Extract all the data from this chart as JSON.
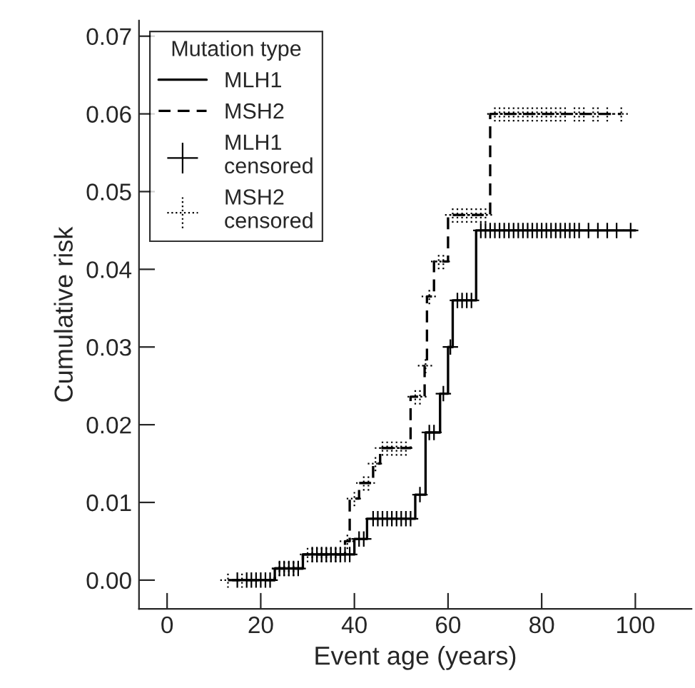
{
  "chart_data": {
    "type": "step",
    "xlabel": "Event age (years)",
    "ylabel": "Cumulative risk",
    "legend_title": "Mutation type",
    "xlim": [
      -6,
      112
    ],
    "xticks": [
      0,
      20,
      40,
      60,
      80,
      100
    ],
    "ylim": [
      -0.0037,
      0.072
    ],
    "yticks": [
      {
        "value": 0,
        "label": "0.00"
      },
      0.01,
      0.02,
      0.03,
      0.04,
      0.05,
      0.06,
      0.07
    ],
    "grid": false,
    "legend": "top left",
    "series": [
      {
        "name": "MLH1",
        "color": "#000000",
        "line_style": "solid",
        "x": [
          14,
          23,
          29,
          40,
          42.7,
          53,
          55.2,
          58.3,
          60,
          61,
          66,
          100
        ],
        "values": [
          0,
          0.0015,
          0.0033,
          0.0053,
          0.0079,
          0.011,
          0.019,
          0.024,
          0.03,
          0.036,
          0.045,
          0.045
        ]
      },
      {
        "name": "MSH2",
        "color": "#000000",
        "line_style": "dashed",
        "x": [
          13,
          23,
          29,
          38,
          39,
          41,
          44,
          45.5,
          52,
          55,
          55.5,
          57,
          60,
          69,
          97
        ],
        "values": [
          0,
          0.0015,
          0.0033,
          0.005,
          0.0105,
          0.0125,
          0.015,
          0.017,
          0.0236,
          0.0276,
          0.0365,
          0.041,
          0.047,
          0.06,
          0.06
        ]
      },
      {
        "name": "MLH1\ncensored",
        "type": "scatter",
        "color": "#000000",
        "line_style": "solid",
        "marker": "cross",
        "x": [
          15,
          17,
          18,
          19,
          20,
          21,
          22,
          24,
          25,
          26,
          27,
          28,
          31,
          32,
          33,
          34,
          35,
          36,
          37,
          38,
          39,
          41,
          42,
          44,
          45,
          46,
          47,
          48,
          49,
          50,
          51,
          52,
          54,
          56,
          57,
          59,
          60.5,
          62,
          63,
          64,
          65,
          67,
          68,
          69,
          70,
          71,
          72,
          73,
          74,
          75,
          76,
          77,
          78,
          79,
          80,
          81,
          82,
          83,
          84,
          85,
          86,
          87,
          88,
          90,
          92,
          94,
          96,
          99
        ],
        "values": [
          0,
          0,
          0,
          0,
          0,
          0,
          0,
          0.0015,
          0.0015,
          0.0015,
          0.0015,
          0.0015,
          0.0033,
          0.0033,
          0.0033,
          0.0033,
          0.0033,
          0.0033,
          0.0033,
          0.0033,
          0.0033,
          0.0053,
          0.0053,
          0.0079,
          0.0079,
          0.0079,
          0.0079,
          0.0079,
          0.0079,
          0.0079,
          0.0079,
          0.0079,
          0.011,
          0.019,
          0.019,
          0.024,
          0.03,
          0.036,
          0.036,
          0.036,
          0.036,
          0.045,
          0.045,
          0.045,
          0.045,
          0.045,
          0.045,
          0.045,
          0.045,
          0.045,
          0.045,
          0.045,
          0.045,
          0.045,
          0.045,
          0.045,
          0.045,
          0.045,
          0.045,
          0.045,
          0.045,
          0.045,
          0.045,
          0.045,
          0.045,
          0.045,
          0.045,
          0.045
        ]
      },
      {
        "name": "MSH2\ncensored",
        "type": "scatter",
        "color": "#000000",
        "line_style": "dotted",
        "marker": "cross",
        "x": [
          13,
          16,
          24,
          25,
          26,
          27,
          30,
          31,
          32,
          33,
          34,
          35,
          36,
          37,
          38.5,
          40,
          42,
          43,
          44.5,
          46,
          47,
          48,
          49,
          50,
          51,
          53,
          54,
          55.2,
          56,
          58,
          59,
          61,
          62,
          63,
          64,
          65,
          66,
          67,
          68,
          70,
          71,
          72,
          73,
          74,
          75,
          76,
          77,
          78,
          79,
          80,
          81,
          82,
          83,
          84,
          85,
          87,
          88,
          89,
          91,
          92,
          94,
          97
        ],
        "values": [
          0,
          0,
          0.0015,
          0.0015,
          0.0015,
          0.0015,
          0.0033,
          0.0033,
          0.0033,
          0.0033,
          0.0033,
          0.0033,
          0.0033,
          0.0033,
          0.005,
          0.0105,
          0.0125,
          0.0125,
          0.015,
          0.017,
          0.017,
          0.017,
          0.017,
          0.017,
          0.017,
          0.0236,
          0.0236,
          0.0276,
          0.0365,
          0.041,
          0.041,
          0.047,
          0.047,
          0.047,
          0.047,
          0.047,
          0.047,
          0.047,
          0.047,
          0.06,
          0.06,
          0.06,
          0.06,
          0.06,
          0.06,
          0.06,
          0.06,
          0.06,
          0.06,
          0.06,
          0.06,
          0.06,
          0.06,
          0.06,
          0.06,
          0.06,
          0.06,
          0.06,
          0.06,
          0.06,
          0.06,
          0.06
        ]
      }
    ]
  }
}
